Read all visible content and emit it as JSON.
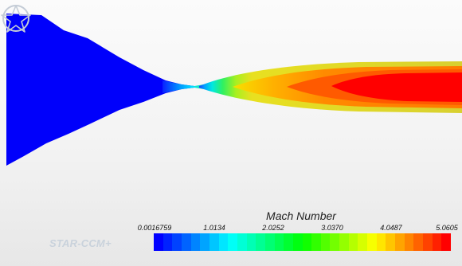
{
  "legend": {
    "title": "Mach Number",
    "ticks": [
      "0.0016759",
      "1.0134",
      "2.0252",
      "3.0370",
      "4.0487",
      "5.0605"
    ]
  },
  "logo": {
    "text": "STAR-CCM+"
  },
  "colors": {
    "subsonic": "#0000ff",
    "max": "#ff0000"
  }
}
